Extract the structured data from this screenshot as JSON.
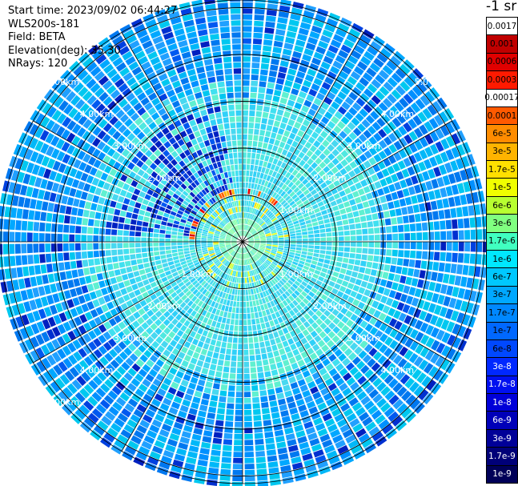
{
  "info": {
    "start_time": "Start time: 2023/09/02 06:44:27",
    "instrument": "WLS200s-181",
    "field": "Field: BETA",
    "elevation": "Elevation(deg): 35.30",
    "nrays": "NRays: 120"
  },
  "unit_label": "-1 sr",
  "colorbar": {
    "labels": [
      "0.0017",
      "0.001",
      "0.0006",
      "0.0003",
      "0.00017",
      "0.0001",
      "6e-5",
      "3e-5",
      "1.7e-5",
      "1e-5",
      "6e-6",
      "3e-6",
      "1.7e-6",
      "1e-6",
      "6e-7",
      "3e-7",
      "1.7e-7",
      "1e-7",
      "6e-8",
      "3e-8",
      "1.7e-8",
      "1e-8",
      "6e-9",
      "3e-9",
      "1.7e-9",
      "1e-9"
    ],
    "colors": [
      "#ffffff",
      "#c00000",
      "#e00000",
      "#ff1a00",
      "#ffffff",
      "#ff5a00",
      "#ff8c00",
      "#ffb400",
      "#ffe000",
      "#f0ff00",
      "#b8ff30",
      "#80ff80",
      "#40ffc0",
      "#00e8ff",
      "#00c8ff",
      "#00a8ff",
      "#0088ff",
      "#0068ff",
      "#0048ff",
      "#0028ff",
      "#0010f0",
      "#0000d8",
      "#0000b8",
      "#000098",
      "#000078",
      "#000058"
    ]
  },
  "chart_data": {
    "type": "heatmap",
    "projection": "polar PPI",
    "rings_km": [
      "1.00km",
      "2.00km",
      "3.00km",
      "4.00km",
      "5.00km"
    ],
    "range_labels": {
      "upper_left": [
        "2.00km",
        "3.00km",
        "4.00km",
        "5.00km"
      ],
      "upper_right": [
        "1.00km",
        "2.00km",
        "3.00km",
        "4.00km",
        "5.0"
      ],
      "lower_left": [
        "1.00km",
        "2.00km",
        "3.00km",
        "4.00km",
        "5.00km"
      ],
      "lower_right": [
        "1.00km",
        "2.00km",
        "3.00km",
        "4.00km"
      ]
    },
    "rays": 120,
    "spoke_step_deg": 30,
    "color_scale": "log",
    "value_range": [
      1e-09,
      0.0017
    ],
    "features": {
      "near_field_cyan_ring_km": [
        0,
        3.3
      ],
      "high_backscatter_arc_km": 1.0,
      "high_backscatter_arc_color": "red",
      "far_field_blue_km": [
        3.3,
        5.5
      ]
    }
  }
}
